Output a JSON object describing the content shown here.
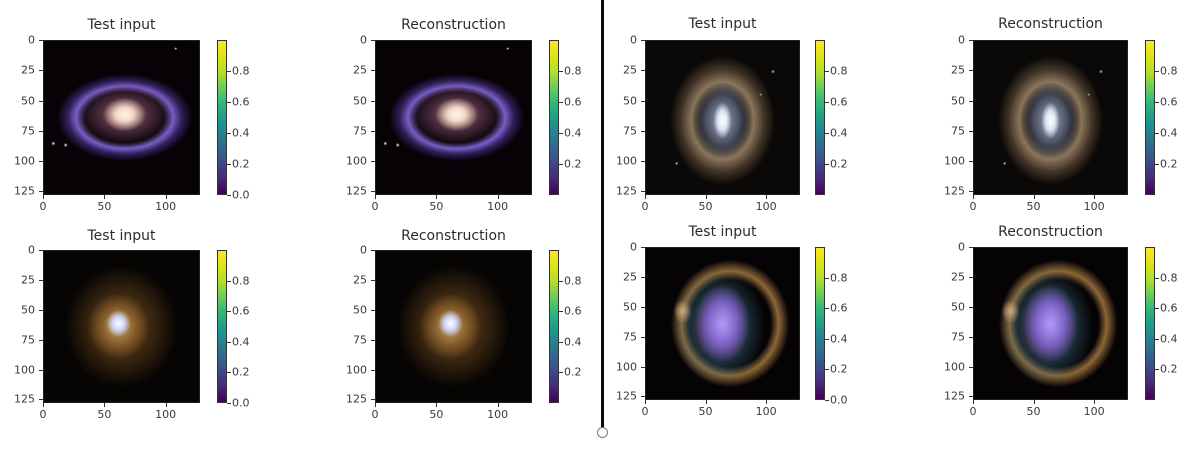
{
  "chart_data": [
    {
      "type": "image",
      "panel": "top-left",
      "title": "Test input",
      "description": "Barred/grand spiral galaxy (M81-like), purple-blue arms, bright cream core, tilted ellipse",
      "xticks": [
        "0",
        "50",
        "100"
      ],
      "yticks": [
        "0",
        "25",
        "50",
        "75",
        "100",
        "125"
      ],
      "xlim": [
        0,
        128
      ],
      "ylim": [
        128,
        0
      ],
      "colorbar": {
        "colormap": "viridis",
        "ticks": [
          "0.0",
          "0.2",
          "0.4",
          "0.6",
          "0.8"
        ],
        "range": [
          0,
          1
        ]
      }
    },
    {
      "type": "image",
      "panel": "top-center-left",
      "title": "Reconstruction",
      "description": "Reconstruction of the M81-like spiral galaxy",
      "xticks": [
        "0",
        "50",
        "100"
      ],
      "yticks": [
        "0",
        "25",
        "50",
        "75",
        "100",
        "125"
      ],
      "xlim": [
        0,
        128
      ],
      "ylim": [
        128,
        0
      ],
      "colorbar": {
        "colormap": "viridis",
        "ticks": [
          "0.2",
          "0.4",
          "0.6",
          "0.8"
        ],
        "range": [
          0,
          1
        ]
      }
    },
    {
      "type": "image",
      "panel": "top-center-right",
      "title": "Test input",
      "description": "Face-on ring galaxy with beige outer disk and blue-white core, star field",
      "xticks": [
        "0",
        "50",
        "100"
      ],
      "yticks": [
        "0",
        "25",
        "50",
        "75",
        "100",
        "125"
      ],
      "xlim": [
        0,
        128
      ],
      "ylim": [
        128,
        0
      ],
      "colorbar": {
        "colormap": "viridis",
        "ticks": [
          "0.2",
          "0.4",
          "0.6",
          "0.8"
        ],
        "range": [
          0,
          1
        ]
      }
    },
    {
      "type": "image",
      "panel": "top-right",
      "title": "Reconstruction",
      "description": "Reconstruction of the face-on ring galaxy",
      "xticks": [
        "0",
        "50",
        "100"
      ],
      "yticks": [
        "0",
        "25",
        "50",
        "75",
        "100",
        "125"
      ],
      "xlim": [
        0,
        128
      ],
      "ylim": [
        128,
        0
      ],
      "colorbar": {
        "colormap": "viridis",
        "ticks": [
          "0.2",
          "0.4",
          "0.6",
          "0.8"
        ],
        "range": [
          0,
          1
        ]
      }
    },
    {
      "type": "image",
      "panel": "bottom-left",
      "title": "Test input",
      "description": "Golden-brown spiral galaxy with bright bluish-white nucleus",
      "xticks": [
        "0",
        "50",
        "100"
      ],
      "yticks": [
        "0",
        "25",
        "50",
        "75",
        "100",
        "125"
      ],
      "xlim": [
        0,
        128
      ],
      "ylim": [
        128,
        0
      ],
      "colorbar": {
        "colormap": "viridis",
        "ticks": [
          "0.0",
          "0.2",
          "0.4",
          "0.6",
          "0.8"
        ],
        "range": [
          0,
          1
        ]
      }
    },
    {
      "type": "image",
      "panel": "bottom-center-left",
      "title": "Reconstruction",
      "description": "Reconstruction of the golden-brown spiral galaxy",
      "xticks": [
        "0",
        "50",
        "100"
      ],
      "yticks": [
        "0",
        "25",
        "50",
        "75",
        "100",
        "125"
      ],
      "xlim": [
        0,
        128
      ],
      "ylim": [
        128,
        0
      ],
      "colorbar": {
        "colormap": "viridis",
        "ticks": [
          "0.2",
          "0.4",
          "0.6",
          "0.8"
        ],
        "range": [
          0,
          1
        ]
      }
    },
    {
      "type": "image",
      "panel": "bottom-center-right",
      "title": "Test input",
      "description": "Pinwheel galaxy (M101-like) in false color: violet/blue core, orange outer arms",
      "xticks": [
        "0",
        "50",
        "100"
      ],
      "yticks": [
        "0",
        "25",
        "50",
        "75",
        "100",
        "125"
      ],
      "xlim": [
        0,
        128
      ],
      "ylim": [
        128,
        0
      ],
      "colorbar": {
        "colormap": "viridis",
        "ticks": [
          "0.0",
          "0.2",
          "0.4",
          "0.6",
          "0.8"
        ],
        "range": [
          0,
          1
        ]
      }
    },
    {
      "type": "image",
      "panel": "bottom-right",
      "title": "Reconstruction",
      "description": "Reconstruction of the pinwheel galaxy",
      "xticks": [
        "0",
        "50",
        "100"
      ],
      "yticks": [
        "0",
        "25",
        "50",
        "75",
        "100",
        "125"
      ],
      "xlim": [
        0,
        128
      ],
      "ylim": [
        128,
        0
      ],
      "colorbar": {
        "colormap": "viridis",
        "ticks": [
          "0.2",
          "0.4",
          "0.6",
          "0.8"
        ],
        "range": [
          0,
          1
        ]
      }
    }
  ],
  "panels": [
    {
      "title": "Test input"
    },
    {
      "title": "Reconstruction"
    },
    {
      "title": "Test input"
    },
    {
      "title": "Reconstruction"
    },
    {
      "title": "Test input"
    },
    {
      "title": "Reconstruction"
    },
    {
      "title": "Test input"
    },
    {
      "title": "Reconstruction"
    }
  ],
  "axis": {
    "xticks": [
      "0",
      "50",
      "100"
    ],
    "yticks": [
      "0",
      "25",
      "50",
      "75",
      "100",
      "125"
    ]
  },
  "colorbar_ticks": {
    "with_zero": [
      "0.0",
      "0.2",
      "0.4",
      "0.6",
      "0.8"
    ],
    "without_zero": [
      "0.2",
      "0.4",
      "0.6",
      "0.8"
    ]
  }
}
